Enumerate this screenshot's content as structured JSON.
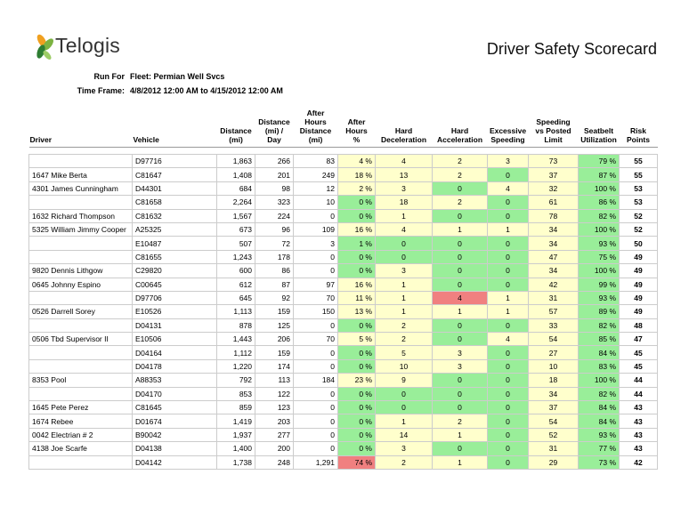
{
  "header": {
    "brand": "Telogis",
    "title": "Driver Safety Scorecard"
  },
  "meta": [
    {
      "label": "Run For",
      "value": "Fleet: Permian Well Svcs"
    },
    {
      "label": "Time Frame:",
      "value": "4/8/2012 12:00 AM to 4/15/2012 12:00 AM"
    }
  ],
  "table": {
    "columns": [
      [
        "Driver"
      ],
      [
        "Vehicle"
      ],
      [
        "Distance",
        "(mi)"
      ],
      [
        "Distance",
        "(mi) /",
        "Day"
      ],
      [
        "After",
        "Hours",
        "Distance",
        "(mi)"
      ],
      [
        "After",
        "Hours",
        "%"
      ],
      [
        "Hard",
        "Deceleration"
      ],
      [
        "Hard",
        "Acceleration"
      ],
      [
        "Excessive",
        "Speeding"
      ],
      [
        "Speeding",
        "vs Posted",
        "Limit"
      ],
      [
        "Seatbelt",
        "Utilization"
      ],
      [
        "Risk",
        "Points"
      ]
    ],
    "rows": [
      [
        null,
        "D97716",
        "1,863",
        "266",
        "83",
        {
          "text": "4 %",
          "color": "#ffffcc"
        },
        {
          "text": "4",
          "color": "#ffffcc"
        },
        {
          "text": "2",
          "color": "#ffffcc"
        },
        {
          "text": "3",
          "color": "#ffffcc"
        },
        {
          "text": "73",
          "color": "#ffffcc"
        },
        {
          "text": "79 %",
          "color": "#99ee99"
        },
        "55"
      ],
      [
        "1647 Mike Berta",
        "C81647",
        "1,408",
        "201",
        "249",
        {
          "text": "18 %",
          "color": "#ffffcc"
        },
        {
          "text": "13",
          "color": "#ffffcc"
        },
        {
          "text": "2",
          "color": "#ffffcc"
        },
        {
          "text": "0",
          "color": "#99ee99"
        },
        {
          "text": "37",
          "color": "#ffffcc"
        },
        {
          "text": "87 %",
          "color": "#99ee99"
        },
        "55"
      ],
      [
        "4301 James Cunningham",
        "D44301",
        "684",
        "98",
        "12",
        {
          "text": "2 %",
          "color": "#ffffcc"
        },
        {
          "text": "3",
          "color": "#ffffcc"
        },
        {
          "text": "0",
          "color": "#99ee99"
        },
        {
          "text": "4",
          "color": "#ffffcc"
        },
        {
          "text": "32",
          "color": "#ffffcc"
        },
        {
          "text": "100 %",
          "color": "#99ee99"
        },
        "53"
      ],
      [
        null,
        "C81658",
        "2,264",
        "323",
        "10",
        {
          "text": "0 %",
          "color": "#99ee99"
        },
        {
          "text": "18",
          "color": "#ffffcc"
        },
        {
          "text": "2",
          "color": "#ffffcc"
        },
        {
          "text": "0",
          "color": "#99ee99"
        },
        {
          "text": "61",
          "color": "#ffffcc"
        },
        {
          "text": "86 %",
          "color": "#99ee99"
        },
        "53"
      ],
      [
        "1632 Richard Thompson",
        "C81632",
        "1,567",
        "224",
        "0",
        {
          "text": "0 %",
          "color": "#99ee99"
        },
        {
          "text": "1",
          "color": "#ffffcc"
        },
        {
          "text": "0",
          "color": "#99ee99"
        },
        {
          "text": "0",
          "color": "#99ee99"
        },
        {
          "text": "78",
          "color": "#ffffcc"
        },
        {
          "text": "82 %",
          "color": "#99ee99"
        },
        "52"
      ],
      [
        "5325 William Jimmy Cooper",
        "A25325",
        "673",
        "96",
        "109",
        {
          "text": "16 %",
          "color": "#ffffcc"
        },
        {
          "text": "4",
          "color": "#ffffcc"
        },
        {
          "text": "1",
          "color": "#ffffcc"
        },
        {
          "text": "1",
          "color": "#ffffcc"
        },
        {
          "text": "34",
          "color": "#ffffcc"
        },
        {
          "text": "100 %",
          "color": "#99ee99"
        },
        "52"
      ],
      [
        null,
        "E10487",
        "507",
        "72",
        "3",
        {
          "text": "1 %",
          "color": "#99ee99"
        },
        {
          "text": "0",
          "color": "#99ee99"
        },
        {
          "text": "0",
          "color": "#99ee99"
        },
        {
          "text": "0",
          "color": "#99ee99"
        },
        {
          "text": "34",
          "color": "#ffffcc"
        },
        {
          "text": "93 %",
          "color": "#99ee99"
        },
        "50"
      ],
      [
        null,
        "C81655",
        "1,243",
        "178",
        "0",
        {
          "text": "0 %",
          "color": "#99ee99"
        },
        {
          "text": "0",
          "color": "#99ee99"
        },
        {
          "text": "0",
          "color": "#99ee99"
        },
        {
          "text": "0",
          "color": "#99ee99"
        },
        {
          "text": "47",
          "color": "#ffffcc"
        },
        {
          "text": "75 %",
          "color": "#99ee99"
        },
        "49"
      ],
      [
        "9820 Dennis Lithgow",
        "C29820",
        "600",
        "86",
        "0",
        {
          "text": "0 %",
          "color": "#99ee99"
        },
        {
          "text": "3",
          "color": "#ffffcc"
        },
        {
          "text": "0",
          "color": "#99ee99"
        },
        {
          "text": "0",
          "color": "#99ee99"
        },
        {
          "text": "34",
          "color": "#ffffcc"
        },
        {
          "text": "100 %",
          "color": "#99ee99"
        },
        "49"
      ],
      [
        "0645 Johnny Espino",
        "C00645",
        "612",
        "87",
        "97",
        {
          "text": "16 %",
          "color": "#ffffcc"
        },
        {
          "text": "1",
          "color": "#ffffcc"
        },
        {
          "text": "0",
          "color": "#99ee99"
        },
        {
          "text": "0",
          "color": "#99ee99"
        },
        {
          "text": "42",
          "color": "#ffffcc"
        },
        {
          "text": "99 %",
          "color": "#99ee99"
        },
        "49"
      ],
      [
        null,
        "D97706",
        "645",
        "92",
        "70",
        {
          "text": "11 %",
          "color": "#ffffcc"
        },
        {
          "text": "1",
          "color": "#ffffcc"
        },
        {
          "text": "4",
          "color": "#f08080"
        },
        {
          "text": "1",
          "color": "#ffffcc"
        },
        {
          "text": "31",
          "color": "#ffffcc"
        },
        {
          "text": "93 %",
          "color": "#99ee99"
        },
        "49"
      ],
      [
        "0526 Darrell Sorey",
        "E10526",
        "1,113",
        "159",
        "150",
        {
          "text": "13 %",
          "color": "#ffffcc"
        },
        {
          "text": "1",
          "color": "#ffffcc"
        },
        {
          "text": "1",
          "color": "#ffffcc"
        },
        {
          "text": "1",
          "color": "#ffffcc"
        },
        {
          "text": "57",
          "color": "#ffffcc"
        },
        {
          "text": "89 %",
          "color": "#99ee99"
        },
        "49"
      ],
      [
        null,
        "D04131",
        "878",
        "125",
        "0",
        {
          "text": "0 %",
          "color": "#99ee99"
        },
        {
          "text": "2",
          "color": "#ffffcc"
        },
        {
          "text": "0",
          "color": "#99ee99"
        },
        {
          "text": "0",
          "color": "#99ee99"
        },
        {
          "text": "33",
          "color": "#ffffcc"
        },
        {
          "text": "82 %",
          "color": "#99ee99"
        },
        "48"
      ],
      [
        "0506 Tbd Supervisor II",
        "E10506",
        "1,443",
        "206",
        "70",
        {
          "text": "5 %",
          "color": "#ffffcc"
        },
        {
          "text": "2",
          "color": "#ffffcc"
        },
        {
          "text": "0",
          "color": "#99ee99"
        },
        {
          "text": "4",
          "color": "#ffffcc"
        },
        {
          "text": "54",
          "color": "#ffffcc"
        },
        {
          "text": "85 %",
          "color": "#99ee99"
        },
        "47"
      ],
      [
        null,
        "D04164",
        "1,112",
        "159",
        "0",
        {
          "text": "0 %",
          "color": "#99ee99"
        },
        {
          "text": "5",
          "color": "#ffffcc"
        },
        {
          "text": "3",
          "color": "#ffffcc"
        },
        {
          "text": "0",
          "color": "#99ee99"
        },
        {
          "text": "27",
          "color": "#ffffcc"
        },
        {
          "text": "84 %",
          "color": "#99ee99"
        },
        "45"
      ],
      [
        null,
        "D04178",
        "1,220",
        "174",
        "0",
        {
          "text": "0 %",
          "color": "#99ee99"
        },
        {
          "text": "10",
          "color": "#ffffcc"
        },
        {
          "text": "3",
          "color": "#ffffcc"
        },
        {
          "text": "0",
          "color": "#99ee99"
        },
        {
          "text": "10",
          "color": "#ffffcc"
        },
        {
          "text": "83 %",
          "color": "#99ee99"
        },
        "45"
      ],
      [
        "8353 Pool",
        "A88353",
        "792",
        "113",
        "184",
        {
          "text": "23 %",
          "color": "#ffffcc"
        },
        {
          "text": "9",
          "color": "#ffffcc"
        },
        {
          "text": "0",
          "color": "#99ee99"
        },
        {
          "text": "0",
          "color": "#99ee99"
        },
        {
          "text": "18",
          "color": "#ffffcc"
        },
        {
          "text": "100 %",
          "color": "#99ee99"
        },
        "44"
      ],
      [
        null,
        "D04170",
        "853",
        "122",
        "0",
        {
          "text": "0 %",
          "color": "#99ee99"
        },
        {
          "text": "0",
          "color": "#99ee99"
        },
        {
          "text": "0",
          "color": "#99ee99"
        },
        {
          "text": "0",
          "color": "#99ee99"
        },
        {
          "text": "34",
          "color": "#ffffcc"
        },
        {
          "text": "82 %",
          "color": "#99ee99"
        },
        "44"
      ],
      [
        "1645 Pete Perez",
        "C81645",
        "859",
        "123",
        "0",
        {
          "text": "0 %",
          "color": "#99ee99"
        },
        {
          "text": "0",
          "color": "#99ee99"
        },
        {
          "text": "0",
          "color": "#99ee99"
        },
        {
          "text": "0",
          "color": "#99ee99"
        },
        {
          "text": "37",
          "color": "#ffffcc"
        },
        {
          "text": "84 %",
          "color": "#99ee99"
        },
        "43"
      ],
      [
        "1674 Rebee",
        "D01674",
        "1,419",
        "203",
        "0",
        {
          "text": "0 %",
          "color": "#99ee99"
        },
        {
          "text": "1",
          "color": "#ffffcc"
        },
        {
          "text": "2",
          "color": "#ffffcc"
        },
        {
          "text": "0",
          "color": "#99ee99"
        },
        {
          "text": "54",
          "color": "#ffffcc"
        },
        {
          "text": "84 %",
          "color": "#99ee99"
        },
        "43"
      ],
      [
        "0042 Electrian # 2",
        "B90042",
        "1,937",
        "277",
        "0",
        {
          "text": "0 %",
          "color": "#99ee99"
        },
        {
          "text": "14",
          "color": "#ffffcc"
        },
        {
          "text": "1",
          "color": "#ffffcc"
        },
        {
          "text": "0",
          "color": "#99ee99"
        },
        {
          "text": "52",
          "color": "#ffffcc"
        },
        {
          "text": "93 %",
          "color": "#99ee99"
        },
        "43"
      ],
      [
        "4138 Joe Scarfe",
        "D04138",
        "1,400",
        "200",
        "0",
        {
          "text": "0 %",
          "color": "#99ee99"
        },
        {
          "text": "3",
          "color": "#ffffcc"
        },
        {
          "text": "0",
          "color": "#99ee99"
        },
        {
          "text": "0",
          "color": "#99ee99"
        },
        {
          "text": "31",
          "color": "#ffffcc"
        },
        {
          "text": "77 %",
          "color": "#99ee99"
        },
        "43"
      ],
      [
        null,
        "D04142",
        "1,738",
        "248",
        "1,291",
        {
          "text": "74 %",
          "color": "#f08080"
        },
        {
          "text": "2",
          "color": "#ffffcc"
        },
        {
          "text": "1",
          "color": "#ffffcc"
        },
        {
          "text": "0",
          "color": "#99ee99"
        },
        {
          "text": "29",
          "color": "#ffffcc"
        },
        {
          "text": "73 %",
          "color": "#99ee99"
        },
        "42"
      ]
    ]
  }
}
